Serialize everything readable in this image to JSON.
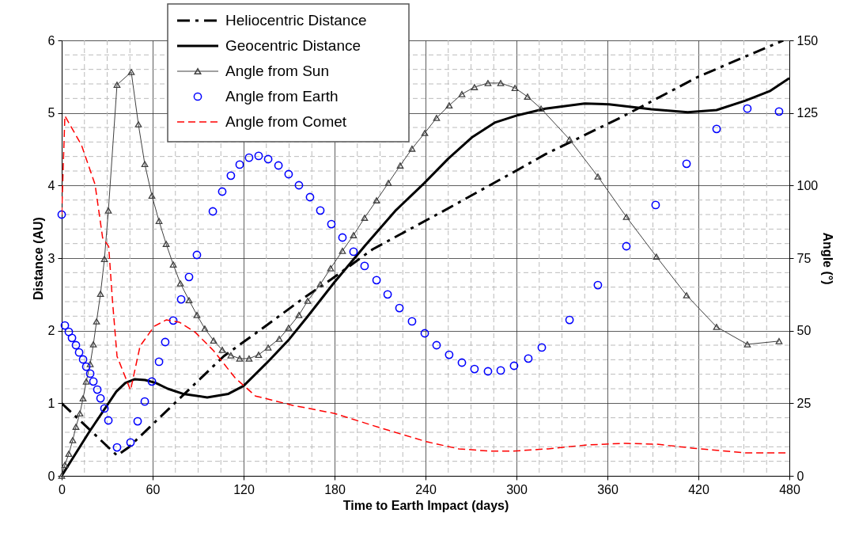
{
  "chart_data": {
    "type": "line",
    "xlabel": "Time to Earth Impact (days)",
    "ylabel": "Distance (AU)",
    "y2label": "Angle (°)",
    "xlim": [
      0,
      480
    ],
    "xticks": [
      0,
      60,
      120,
      180,
      240,
      300,
      360,
      420,
      480
    ],
    "ylim": [
      0,
      6
    ],
    "yticks": [
      0,
      1,
      2,
      3,
      4,
      5,
      6
    ],
    "y2lim": [
      0,
      150
    ],
    "y2ticks": [
      0,
      25,
      50,
      75,
      100,
      125,
      150
    ],
    "grid": true,
    "legend": "top",
    "series": [
      {
        "name": "Heliocentric Distance",
        "color": "#000000",
        "marker": "none",
        "line_style": "dashdot",
        "x": [
          0,
          36.5,
          44,
          65,
          86,
          107,
          131,
          159,
          178,
          205,
          251,
          302,
          319,
          370,
          420,
          476
        ],
        "values": [
          1.0,
          0.28,
          0.39,
          0.81,
          1.23,
          1.65,
          2.01,
          2.44,
          2.71,
          3.12,
          3.64,
          4.23,
          4.43,
          4.95,
          5.5,
          6.0
        ]
      },
      {
        "name": "Geocentric Distance",
        "color": "#000000",
        "marker": "none",
        "line_style": "solid",
        "x": [
          0,
          18,
          36,
          42,
          48,
          55,
          62,
          70,
          80,
          96,
          110,
          120,
          135,
          150,
          162,
          180,
          200,
          220,
          239,
          255,
          271,
          286,
          301,
          319,
          345,
          361,
          389,
          413,
          432,
          451,
          467,
          480
        ],
        "values": [
          0,
          0.6,
          1.16,
          1.28,
          1.33,
          1.32,
          1.28,
          1.2,
          1.13,
          1.08,
          1.13,
          1.24,
          1.55,
          1.88,
          2.19,
          2.67,
          3.17,
          3.65,
          4.03,
          4.37,
          4.67,
          4.87,
          4.97,
          5.06,
          5.13,
          5.12,
          5.05,
          5.01,
          5.04,
          5.17,
          5.3,
          5.48
        ]
      },
      {
        "name": "Angle from Sun",
        "axis": "y2",
        "color": "#404040",
        "marker": "triangle",
        "line_style": "solid",
        "x": [
          0,
          2.1,
          4.7,
          7.3,
          9.4,
          12.0,
          14.1,
          16.2,
          18.8,
          20.9,
          23.0,
          25.6,
          28.2,
          30.8,
          36.5,
          45.9,
          50.6,
          54.8,
          59.5,
          64.2,
          68.9,
          73.6,
          78.3,
          84.0,
          89.2,
          94.4,
          100.2,
          105.9,
          111.6,
          117.4,
          123.6,
          129.9,
          136.2,
          143.5,
          149.7,
          156.5,
          162.3,
          170.6,
          177.4,
          185.2,
          192.5,
          199.8,
          207.7,
          215.5,
          223.3,
          231.1,
          239.5,
          247.3,
          255.6,
          264.0,
          272.3,
          281.2,
          289.6,
          299.0,
          307.3,
          316.2,
          335.0,
          353.7,
          372.5,
          392.3,
          412.2,
          432.0,
          452.3,
          473.2
        ],
        "values": [
          0,
          3.8,
          7.6,
          12.3,
          16.9,
          21.5,
          26.7,
          32.5,
          38.5,
          45.3,
          53.2,
          62.7,
          74.7,
          91.4,
          134.7,
          139.1,
          121.1,
          107.4,
          96.5,
          87.8,
          79.9,
          72.8,
          66.3,
          60.5,
          55.4,
          50.7,
          46.6,
          43.4,
          41.5,
          40.4,
          40.4,
          41.7,
          44.2,
          47.2,
          51.0,
          55.4,
          60.3,
          66.0,
          71.5,
          77.5,
          82.9,
          88.9,
          94.9,
          100.9,
          106.9,
          112.7,
          118.1,
          123.3,
          127.6,
          131.5,
          133.9,
          135.3,
          135.3,
          133.6,
          130.6,
          126.5,
          115.9,
          103.1,
          89.2,
          75.5,
          62.2,
          51.3,
          45.3,
          46.4
        ]
      },
      {
        "name": "Angle from Earth",
        "type": "scatter",
        "axis": "y2",
        "color": "#0000ff",
        "marker": "circle",
        "x": [
          0,
          2.1,
          4.7,
          6.8,
          9.4,
          11.5,
          14.1,
          16.2,
          18.8,
          20.9,
          23.5,
          25.6,
          28.2,
          30.8,
          36.5,
          45.4,
          50.1,
          54.8,
          59.5,
          64.2,
          68.3,
          73.6,
          78.8,
          84.0,
          89.2,
          99.7,
          105.9,
          111.6,
          117.4,
          123.6,
          129.9,
          136.2,
          143.0,
          149.7,
          156.5,
          163.8,
          170.6,
          177.9,
          185.2,
          192.5,
          199.8,
          207.7,
          215.0,
          222.8,
          231.1,
          239.5,
          247.3,
          255.6,
          264.0,
          272.3,
          281.2,
          289.6,
          298.4,
          307.8,
          316.7,
          335.0,
          353.7,
          372.5,
          391.8,
          412.2,
          432.0,
          452.3,
          473.2
        ],
        "values": [
          90.0,
          51.8,
          49.6,
          47.5,
          45.0,
          42.5,
          40.1,
          37.6,
          35.2,
          32.5,
          29.7,
          26.7,
          23.2,
          19.1,
          9.8,
          11.5,
          18.8,
          25.6,
          32.5,
          39.3,
          46.1,
          53.5,
          60.8,
          68.5,
          76.1,
          91.1,
          97.9,
          103.4,
          107.2,
          109.6,
          110.2,
          109.1,
          106.9,
          103.9,
          100.1,
          96.0,
          91.4,
          86.7,
          82.1,
          77.2,
          72.3,
          67.4,
          62.5,
          57.8,
          53.2,
          49.1,
          45.0,
          41.7,
          39.0,
          36.8,
          36.0,
          36.3,
          37.9,
          40.4,
          44.2,
          53.7,
          65.7,
          79.1,
          93.3,
          107.5,
          119.5,
          126.5,
          125.5
        ]
      },
      {
        "name": "Angle from Comet",
        "axis": "y2",
        "color": "#ff0000",
        "marker": "none",
        "line_style": "dashed",
        "x": [
          0,
          2.1,
          13,
          22,
          27,
          31,
          33.4,
          36.5,
          45.4,
          51.7,
          61,
          68.9,
          77.7,
          88.2,
          100.2,
          114.3,
          127.8,
          152.3,
          180,
          209.7,
          241,
          262,
          282.8,
          296.9,
          320.9,
          345.4,
          371.5,
          392.3,
          416.9,
          451.3,
          480
        ],
        "values": [
          90,
          124,
          114,
          100.4,
          82,
          79,
          61,
          41.2,
          29.5,
          44.7,
          51.5,
          53.7,
          52.9,
          49.4,
          43.1,
          33.8,
          27.5,
          24.3,
          21.5,
          16.6,
          11.7,
          9.3,
          8.5,
          8.5,
          9.3,
          10.6,
          11.2,
          10.9,
          9.5,
          7.9,
          7.9
        ]
      }
    ]
  }
}
